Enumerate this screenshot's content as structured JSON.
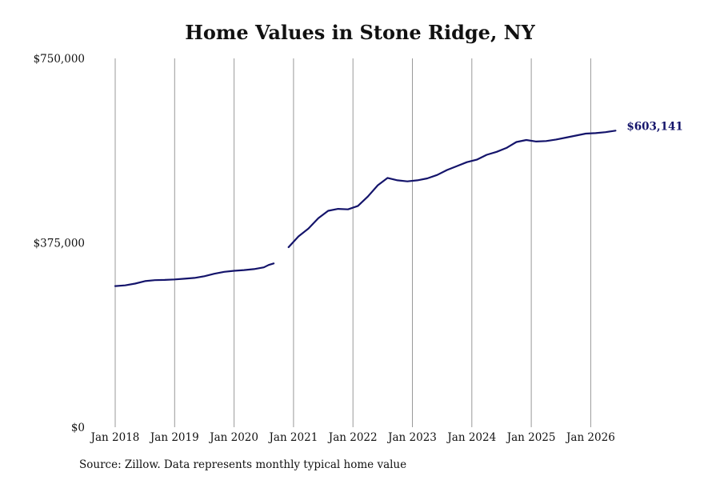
{
  "title": "Home Values in Stone Ridge, NY",
  "source": "Source: Zillow. Data represents monthly typical home value",
  "chart_data": {
    "type": "line",
    "title": "Home Values in Stone Ridge, NY",
    "xlabel": "",
    "ylabel": "",
    "ylim": [
      0,
      750000
    ],
    "y_ticks": [
      "$0",
      "$375,000",
      "$750,000"
    ],
    "x_tick_labels": [
      "Jan 2018",
      "Jan 2019",
      "Jan 2020",
      "Jan 2021",
      "Jan 2022",
      "Jan 2023",
      "Jan 2024",
      "Jan 2025",
      "Jan 2026"
    ],
    "grid": "vertical",
    "line_color": "#14146b",
    "end_label": "$603,141",
    "series": [
      {
        "segments": [
          [
            [
              "2018-01",
              287000
            ],
            [
              "2018-03",
              288500
            ],
            [
              "2018-05",
              292000
            ],
            [
              "2018-07",
              297000
            ],
            [
              "2018-09",
              299000
            ],
            [
              "2018-11",
              299500
            ],
            [
              "2019-01",
              300500
            ],
            [
              "2019-03",
              302000
            ],
            [
              "2019-05",
              303500
            ],
            [
              "2019-07",
              307000
            ],
            [
              "2019-09",
              312000
            ],
            [
              "2019-11",
              316000
            ],
            [
              "2020-01",
              318000
            ],
            [
              "2020-03",
              319500
            ],
            [
              "2020-05",
              321500
            ],
            [
              "2020-07",
              325000
            ],
            [
              "2020-08",
              330000
            ],
            [
              "2020-09",
              333000
            ]
          ],
          [
            [
              "2020-12",
              366000
            ],
            [
              "2021-02",
              388000
            ],
            [
              "2021-04",
              404000
            ],
            [
              "2021-06",
              425000
            ],
            [
              "2021-08",
              440000
            ],
            [
              "2021-10",
              444000
            ],
            [
              "2021-12",
              443000
            ],
            [
              "2022-02",
              450000
            ],
            [
              "2022-04",
              469000
            ],
            [
              "2022-06",
              492000
            ],
            [
              "2022-08",
              507000
            ],
            [
              "2022-10",
              502000
            ],
            [
              "2022-12",
              500000
            ],
            [
              "2023-02",
              502000
            ],
            [
              "2023-04",
              506000
            ],
            [
              "2023-06",
              513000
            ],
            [
              "2023-08",
              523000
            ],
            [
              "2023-10",
              531000
            ],
            [
              "2023-12",
              539000
            ],
            [
              "2024-02",
              544000
            ],
            [
              "2024-04",
              554000
            ],
            [
              "2024-06",
              560000
            ],
            [
              "2024-08",
              568000
            ],
            [
              "2024-10",
              580000
            ],
            [
              "2024-12",
              584000
            ],
            [
              "2025-02",
              581000
            ],
            [
              "2025-04",
              582000
            ],
            [
              "2025-06",
              585000
            ],
            [
              "2025-08",
              589000
            ],
            [
              "2025-10",
              593000
            ],
            [
              "2025-12",
              597000
            ],
            [
              "2026-02",
              598000
            ],
            [
              "2026-04",
              600000
            ],
            [
              "2026-06",
              603141
            ]
          ]
        ]
      }
    ]
  }
}
